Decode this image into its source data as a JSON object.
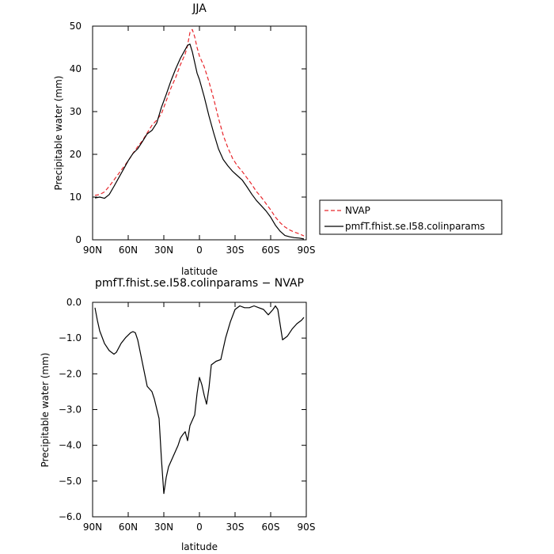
{
  "chart_data": [
    {
      "type": "line",
      "title": "JJA",
      "xlabel": "latitude",
      "ylabel": "Precipitable water (mm)",
      "xlim": [
        90,
        -90
      ],
      "ylim": [
        0,
        50
      ],
      "x_ticks": [
        90,
        60,
        30,
        0,
        -30,
        -60,
        -90
      ],
      "x_tick_labels": [
        "90N",
        "60N",
        "30N",
        "0",
        "30S",
        "60S",
        "90S"
      ],
      "y_ticks": [
        0,
        10,
        20,
        30,
        40,
        50
      ],
      "y_tick_labels": [
        "0",
        "10",
        "20",
        "30",
        "40",
        "50"
      ],
      "legend": {
        "placement": "right",
        "entries": [
          "NVAP",
          "pmfT.fhist.se.I58.colinparams"
        ]
      },
      "series": [
        {
          "name": "NVAP",
          "color": "#e8262b",
          "dash": "dashed",
          "x": [
            88,
            84,
            80,
            76,
            72,
            68,
            64,
            60,
            56,
            52,
            48,
            44,
            40,
            36,
            32,
            28,
            24,
            20,
            16,
            12,
            10,
            8,
            6,
            4,
            2,
            0,
            -4,
            -8,
            -12,
            -16,
            -20,
            -24,
            -28,
            -32,
            -36,
            -40,
            -44,
            -48,
            -52,
            -56,
            -60,
            -64,
            -68,
            -72,
            -76,
            -80,
            -84,
            -88
          ],
          "values": [
            10.4,
            10.6,
            11.2,
            12.5,
            14.0,
            15.5,
            17.0,
            18.5,
            20.2,
            21.8,
            23.2,
            25.0,
            26.8,
            28.0,
            29.5,
            32.5,
            35.5,
            38.0,
            41.0,
            43.5,
            45.5,
            48.5,
            49.2,
            47.5,
            45.0,
            43.0,
            40.5,
            37.0,
            33.0,
            28.5,
            24.5,
            21.5,
            19.0,
            17.3,
            16.0,
            14.5,
            13.0,
            11.3,
            10.0,
            8.5,
            7.0,
            5.3,
            4.0,
            3.0,
            2.3,
            1.8,
            1.4,
            0.9
          ]
        },
        {
          "name": "pmfT.fhist.se.I58.colinparams",
          "color": "#000000",
          "dash": "solid",
          "x": [
            88,
            84,
            80,
            76,
            72,
            68,
            64,
            60,
            56,
            52,
            48,
            44,
            40,
            36,
            32,
            28,
            24,
            20,
            16,
            12,
            10,
            8,
            6,
            4,
            2,
            0,
            -4,
            -8,
            -12,
            -16,
            -20,
            -24,
            -28,
            -32,
            -36,
            -40,
            -44,
            -48,
            -52,
            -56,
            -60,
            -64,
            -68,
            -72,
            -76,
            -80,
            -84,
            -88
          ],
          "values": [
            9.8,
            10.0,
            9.7,
            10.6,
            12.5,
            14.5,
            16.5,
            18.5,
            20.2,
            21.3,
            23.0,
            24.8,
            25.6,
            27.3,
            31.0,
            34.0,
            37.2,
            40.0,
            42.5,
            44.5,
            45.5,
            45.8,
            44.0,
            41.5,
            39.0,
            37.5,
            33.5,
            29.0,
            25.0,
            21.3,
            18.8,
            17.3,
            16.0,
            15.0,
            14.0,
            12.4,
            10.7,
            9.2,
            8.0,
            6.8,
            5.3,
            3.4,
            2.0,
            1.0,
            0.7,
            0.5,
            0.4,
            0.2
          ]
        }
      ]
    },
    {
      "type": "line",
      "title": "pmfT.fhist.se.I58.colinparams − NVAP",
      "xlabel": "latitude",
      "ylabel": "Precipitable water (mm)",
      "xlim": [
        90,
        -90
      ],
      "ylim": [
        -6.0,
        0.0
      ],
      "x_ticks": [
        90,
        60,
        30,
        0,
        -30,
        -60,
        -90
      ],
      "x_tick_labels": [
        "90N",
        "60N",
        "30N",
        "0",
        "30S",
        "60S",
        "90S"
      ],
      "y_ticks": [
        0.0,
        -1.0,
        -2.0,
        -3.0,
        -4.0,
        -5.0,
        -6.0
      ],
      "y_tick_labels": [
        "0.0",
        "−1.0",
        "−2.0",
        "−3.0",
        "−4.0",
        "−5.0",
        "−6.0"
      ],
      "series": [
        {
          "color": "#000000",
          "dash": "solid",
          "x": [
            88,
            86,
            84,
            80,
            76,
            72,
            70,
            66,
            62,
            58,
            56,
            54,
            52,
            48,
            44,
            40,
            38,
            34,
            32,
            30,
            28,
            26,
            22,
            18,
            16,
            14,
            12,
            10,
            8,
            6,
            4,
            2,
            0,
            -2,
            -4,
            -6,
            -8,
            -10,
            -14,
            -18,
            -22,
            -26,
            -30,
            -34,
            -38,
            -42,
            -46,
            -50,
            -54,
            -58,
            -62,
            -64,
            -66,
            -70,
            -74,
            -78,
            -82,
            -86,
            -88
          ],
          "values": [
            -0.15,
            -0.5,
            -0.8,
            -1.15,
            -1.35,
            -1.45,
            -1.4,
            -1.15,
            -0.98,
            -0.85,
            -0.82,
            -0.85,
            -1.05,
            -1.7,
            -2.35,
            -2.5,
            -2.7,
            -3.25,
            -4.4,
            -5.35,
            -4.9,
            -4.6,
            -4.3,
            -4.0,
            -3.8,
            -3.7,
            -3.62,
            -3.87,
            -3.45,
            -3.3,
            -3.15,
            -2.55,
            -2.1,
            -2.3,
            -2.6,
            -2.85,
            -2.4,
            -1.75,
            -1.65,
            -1.6,
            -1.0,
            -0.55,
            -0.2,
            -0.1,
            -0.15,
            -0.15,
            -0.1,
            -0.15,
            -0.2,
            -0.35,
            -0.2,
            -0.1,
            -0.2,
            -1.05,
            -0.95,
            -0.75,
            -0.6,
            -0.5,
            -0.42
          ]
        }
      ]
    }
  ]
}
